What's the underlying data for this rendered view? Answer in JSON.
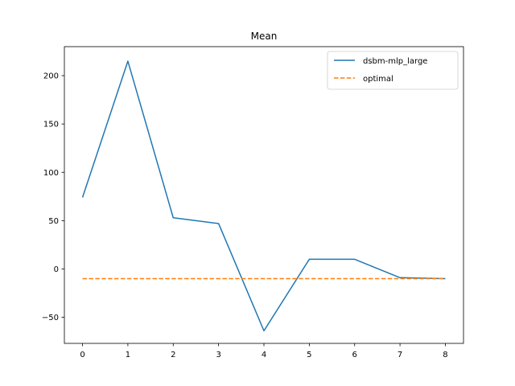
{
  "chart_data": {
    "type": "line",
    "title": "Mean",
    "xlabel": "",
    "ylabel": "",
    "xlim": [
      -0.4,
      8.4
    ],
    "ylim": [
      -77,
      230
    ],
    "xticks": [
      0,
      1,
      2,
      3,
      4,
      5,
      6,
      7,
      8
    ],
    "yticks": [
      -50,
      0,
      50,
      100,
      150,
      200
    ],
    "grid": false,
    "legend_position": "top-right",
    "series": [
      {
        "name": "dsbm-mlp_large",
        "style": "solid",
        "color": "#1f77b4",
        "x": [
          0,
          1,
          2,
          3,
          4,
          5,
          6,
          7,
          8
        ],
        "y": [
          74,
          215,
          53,
          47,
          -64,
          10,
          10,
          -9,
          -10
        ]
      },
      {
        "name": "optimal",
        "style": "dashed",
        "color": "#ff7f0e",
        "x": [
          0,
          1,
          2,
          3,
          4,
          5,
          6,
          7,
          8
        ],
        "y": [
          -10,
          -10,
          -10,
          -10,
          -10,
          -10,
          -10,
          -10,
          -10
        ]
      }
    ]
  }
}
